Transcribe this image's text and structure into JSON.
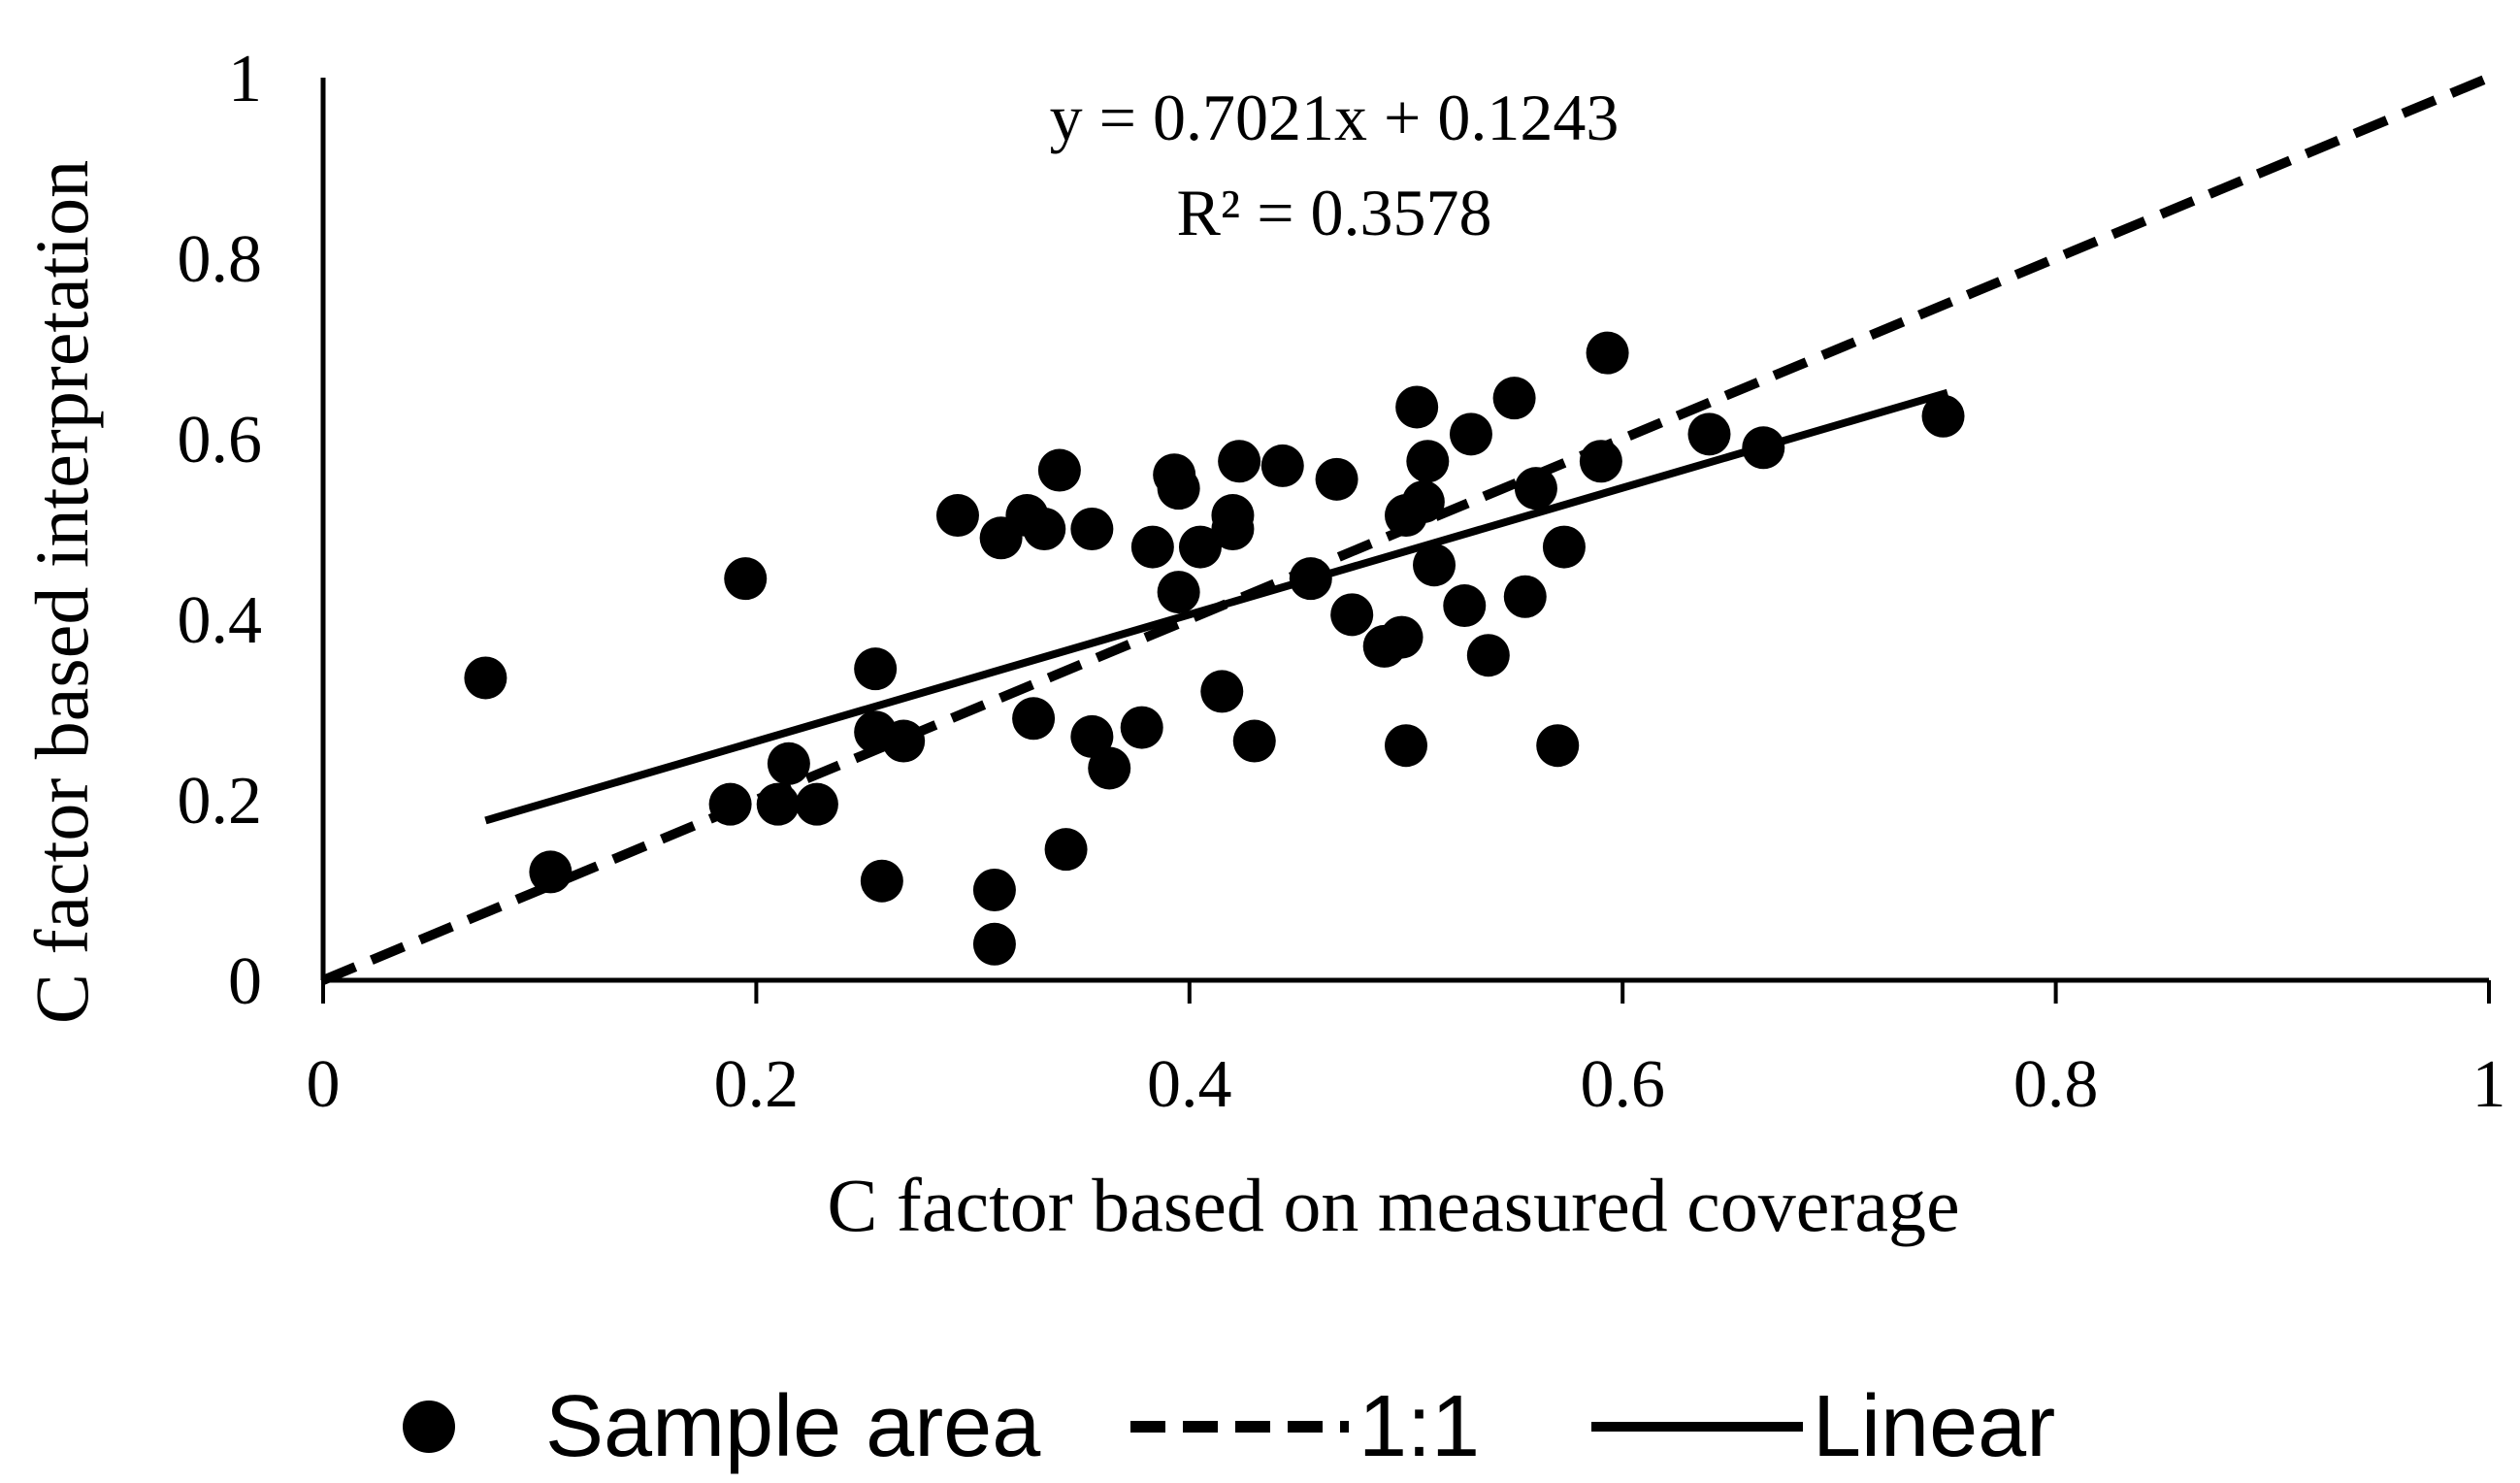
{
  "chart_data": {
    "type": "scatter",
    "xlabel": "C factor based on measured coverage",
    "ylabel": "C factor based interpretation",
    "xlim": [
      0,
      1
    ],
    "ylim": [
      0,
      1
    ],
    "x_ticks": [
      "0",
      "0.2",
      "0.4",
      "0.6",
      "0.8",
      "1"
    ],
    "y_ticks": [
      "0",
      "0.2",
      "0.4",
      "0.6",
      "0.8",
      "1"
    ],
    "equation": "y = 0.7021x + 0.1243",
    "r_squared": "R² = 0.3578",
    "trendline": {
      "slope": 0.7021,
      "intercept": 0.1243,
      "x_range": [
        0.075,
        0.75
      ]
    },
    "identity_line": {
      "x_range": [
        0,
        1
      ]
    },
    "legend": [
      {
        "label": "Sample area",
        "kind": "marker"
      },
      {
        "label": "1:1",
        "kind": "dashed"
      },
      {
        "label": "Linear",
        "kind": "solid"
      }
    ],
    "series": [
      {
        "name": "Sample area",
        "points": [
          [
            0.075,
            0.335
          ],
          [
            0.105,
            0.12
          ],
          [
            0.188,
            0.195
          ],
          [
            0.195,
            0.445
          ],
          [
            0.21,
            0.195
          ],
          [
            0.215,
            0.24
          ],
          [
            0.228,
            0.195
          ],
          [
            0.255,
            0.345
          ],
          [
            0.255,
            0.275
          ],
          [
            0.258,
            0.11
          ],
          [
            0.268,
            0.265
          ],
          [
            0.293,
            0.515
          ],
          [
            0.31,
            0.04
          ],
          [
            0.31,
            0.1
          ],
          [
            0.313,
            0.49
          ],
          [
            0.325,
            0.515
          ],
          [
            0.328,
            0.29
          ],
          [
            0.333,
            0.5
          ],
          [
            0.34,
            0.565
          ],
          [
            0.343,
            0.145
          ],
          [
            0.355,
            0.5
          ],
          [
            0.355,
            0.27
          ],
          [
            0.363,
            0.235
          ],
          [
            0.378,
            0.28
          ],
          [
            0.383,
            0.48
          ],
          [
            0.393,
            0.56
          ],
          [
            0.395,
            0.545
          ],
          [
            0.395,
            0.43
          ],
          [
            0.405,
            0.48
          ],
          [
            0.415,
            0.32
          ],
          [
            0.42,
            0.5
          ],
          [
            0.42,
            0.515
          ],
          [
            0.423,
            0.575
          ],
          [
            0.43,
            0.265
          ],
          [
            0.443,
            0.57
          ],
          [
            0.456,
            0.445
          ],
          [
            0.468,
            0.555
          ],
          [
            0.475,
            0.405
          ],
          [
            0.49,
            0.37
          ],
          [
            0.498,
            0.38
          ],
          [
            0.5,
            0.515
          ],
          [
            0.5,
            0.26
          ],
          [
            0.505,
            0.635
          ],
          [
            0.508,
            0.53
          ],
          [
            0.51,
            0.575
          ],
          [
            0.513,
            0.46
          ],
          [
            0.527,
            0.415
          ],
          [
            0.53,
            0.605
          ],
          [
            0.538,
            0.36
          ],
          [
            0.55,
            0.645
          ],
          [
            0.555,
            0.425
          ],
          [
            0.56,
            0.545
          ],
          [
            0.57,
            0.26
          ],
          [
            0.573,
            0.48
          ],
          [
            0.59,
            0.575
          ],
          [
            0.593,
            0.695
          ],
          [
            0.64,
            0.605
          ],
          [
            0.665,
            0.59
          ],
          [
            0.748,
            0.625
          ]
        ]
      }
    ]
  },
  "colors": {
    "ink": "#000000",
    "background": "#ffffff"
  }
}
